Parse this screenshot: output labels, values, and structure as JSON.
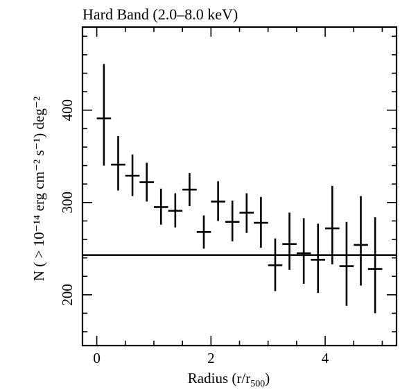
{
  "chart_data": {
    "type": "scatter",
    "title": "Hard Band (2.0–8.0 keV)",
    "xlabel": {
      "main": "Radius (r/r",
      "sub": "500",
      "close": ")"
    },
    "ylabel": "N ( > 10⁻¹⁴ erg cm⁻² s⁻¹) deg⁻²",
    "xlim": [
      -0.25,
      5.25
    ],
    "ylim": [
      145,
      490
    ],
    "xticks": [
      0,
      2,
      4
    ],
    "yticks": [
      200,
      300,
      400
    ],
    "x_minor_step": 0.5,
    "y_minor_step": 20,
    "reference_line": 243,
    "points": [
      {
        "x": 0.125,
        "y": 391,
        "ylo": 340,
        "yhi": 450
      },
      {
        "x": 0.375,
        "y": 341,
        "ylo": 313,
        "yhi": 372
      },
      {
        "x": 0.625,
        "y": 329,
        "ylo": 307,
        "yhi": 352
      },
      {
        "x": 0.875,
        "y": 322,
        "ylo": 301,
        "yhi": 343
      },
      {
        "x": 1.125,
        "y": 295,
        "ylo": 276,
        "yhi": 315
      },
      {
        "x": 1.375,
        "y": 291,
        "ylo": 273,
        "yhi": 310
      },
      {
        "x": 1.625,
        "y": 314,
        "ylo": 296,
        "yhi": 332
      },
      {
        "x": 1.875,
        "y": 268,
        "ylo": 250,
        "yhi": 286
      },
      {
        "x": 2.125,
        "y": 301,
        "ylo": 280,
        "yhi": 323
      },
      {
        "x": 2.375,
        "y": 279,
        "ylo": 258,
        "yhi": 302
      },
      {
        "x": 2.625,
        "y": 289,
        "ylo": 267,
        "yhi": 310
      },
      {
        "x": 2.875,
        "y": 278,
        "ylo": 251,
        "yhi": 306
      },
      {
        "x": 3.125,
        "y": 232,
        "ylo": 204,
        "yhi": 261
      },
      {
        "x": 3.375,
        "y": 255,
        "ylo": 227,
        "yhi": 289
      },
      {
        "x": 3.625,
        "y": 245,
        "ylo": 212,
        "yhi": 283
      },
      {
        "x": 3.875,
        "y": 238,
        "ylo": 202,
        "yhi": 277
      },
      {
        "x": 4.125,
        "y": 272,
        "ylo": 233,
        "yhi": 318
      },
      {
        "x": 4.375,
        "y": 231,
        "ylo": 188,
        "yhi": 279
      },
      {
        "x": 4.625,
        "y": 254,
        "ylo": 210,
        "yhi": 307
      },
      {
        "x": 4.875,
        "y": 228,
        "ylo": 180,
        "yhi": 284
      }
    ],
    "x_halfwidth": 0.125,
    "grid": false,
    "legend": "none"
  }
}
